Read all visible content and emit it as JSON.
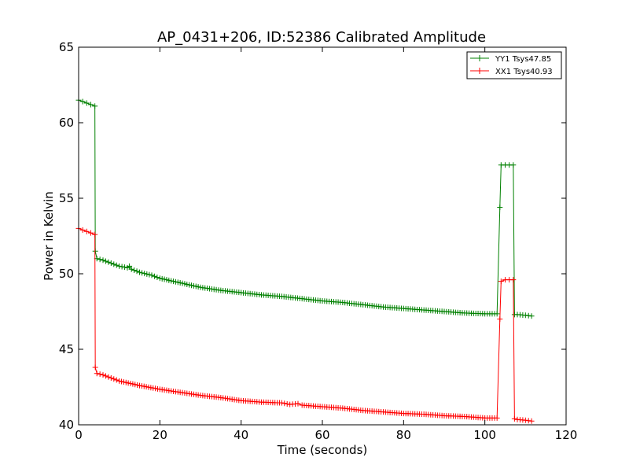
{
  "chart_data": {
    "type": "line",
    "title": "AP_0431+206, ID:52386 Calibrated Amplitude",
    "xlabel": "Time (seconds)",
    "ylabel": "Power in Kelvin",
    "xlim": [
      0,
      120
    ],
    "ylim": [
      40,
      65
    ],
    "xticks": [
      "0",
      "20",
      "40",
      "60",
      "80",
      "100",
      "120"
    ],
    "yticks": [
      "40",
      "45",
      "50",
      "55",
      "60",
      "65"
    ],
    "grid": false,
    "legend_position": "top-right",
    "marker": "+",
    "series": [
      {
        "name": "YY1 Tsys47.85",
        "color": "#008000",
        "points": [
          [
            0,
            61.5
          ],
          [
            1,
            61.4
          ],
          [
            2,
            61.3
          ],
          [
            3,
            61.2
          ],
          [
            4,
            61.1
          ],
          [
            4.1,
            51.5
          ],
          [
            4.5,
            51.0
          ],
          [
            6,
            50.9
          ],
          [
            8,
            50.7
          ],
          [
            10,
            50.5
          ],
          [
            12,
            50.4
          ],
          [
            12.5,
            50.5
          ],
          [
            13,
            50.3
          ],
          [
            15,
            50.1
          ],
          [
            18,
            49.9
          ],
          [
            20,
            49.7
          ],
          [
            25,
            49.4
          ],
          [
            30,
            49.1
          ],
          [
            35,
            48.9
          ],
          [
            40,
            48.75
          ],
          [
            45,
            48.6
          ],
          [
            50,
            48.5
          ],
          [
            55,
            48.35
          ],
          [
            60,
            48.2
          ],
          [
            65,
            48.1
          ],
          [
            70,
            47.95
          ],
          [
            75,
            47.8
          ],
          [
            80,
            47.7
          ],
          [
            85,
            47.6
          ],
          [
            90,
            47.5
          ],
          [
            95,
            47.4
          ],
          [
            100,
            47.35
          ],
          [
            103,
            47.35
          ],
          [
            103.7,
            54.4
          ],
          [
            104,
            57.2
          ],
          [
            105,
            57.2
          ],
          [
            106,
            57.2
          ],
          [
            107,
            57.2
          ],
          [
            107.3,
            47.3
          ],
          [
            108,
            47.3
          ],
          [
            110,
            47.25
          ],
          [
            111.5,
            47.2
          ]
        ]
      },
      {
        "name": "XX1 Tsys40.93",
        "color": "#ff0000",
        "points": [
          [
            0,
            53.0
          ],
          [
            1,
            52.9
          ],
          [
            2,
            52.8
          ],
          [
            3,
            52.7
          ],
          [
            4,
            52.6
          ],
          [
            4.1,
            43.8
          ],
          [
            4.5,
            43.4
          ],
          [
            6,
            43.3
          ],
          [
            8,
            43.1
          ],
          [
            10,
            42.9
          ],
          [
            15,
            42.6
          ],
          [
            20,
            42.35
          ],
          [
            25,
            42.15
          ],
          [
            30,
            41.95
          ],
          [
            35,
            41.8
          ],
          [
            40,
            41.6
          ],
          [
            45,
            41.5
          ],
          [
            50,
            41.45
          ],
          [
            52,
            41.35
          ],
          [
            54,
            41.4
          ],
          [
            55,
            41.3
          ],
          [
            60,
            41.2
          ],
          [
            65,
            41.1
          ],
          [
            70,
            40.95
          ],
          [
            75,
            40.85
          ],
          [
            80,
            40.75
          ],
          [
            85,
            40.7
          ],
          [
            90,
            40.6
          ],
          [
            95,
            40.55
          ],
          [
            100,
            40.45
          ],
          [
            103,
            40.45
          ],
          [
            103.7,
            47.0
          ],
          [
            104,
            49.5
          ],
          [
            105,
            49.6
          ],
          [
            106,
            49.6
          ],
          [
            107,
            49.6
          ],
          [
            107.3,
            40.4
          ],
          [
            108,
            40.35
          ],
          [
            110,
            40.3
          ],
          [
            111.5,
            40.25
          ]
        ]
      }
    ]
  }
}
